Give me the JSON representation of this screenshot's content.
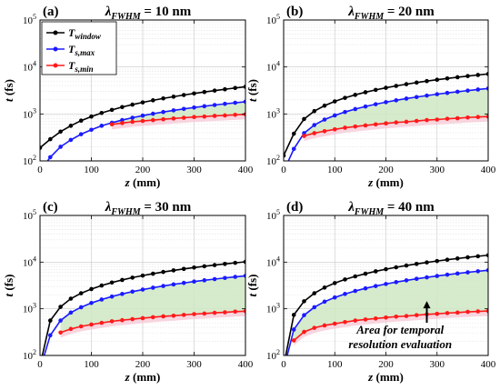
{
  "chart_data": [
    {
      "type": "line",
      "panel": "(a)",
      "title_var": "λ",
      "title_sub": "FWHM",
      "title_rest": " = 10 nm",
      "xlabel": "z (mm)",
      "ylabel": "t (fs)",
      "xlim": [
        0,
        400
      ],
      "ylim": [
        100,
        100000
      ],
      "yscale": "log",
      "xticks": [
        0,
        100,
        200,
        300,
        400
      ],
      "yticks": [
        {
          "v": 100,
          "label": "10",
          "exp": "2"
        },
        {
          "v": 1000,
          "label": "10",
          "exp": "3"
        },
        {
          "v": 10000,
          "label": "10",
          "exp": "4"
        },
        {
          "v": 100000,
          "label": "10",
          "exp": "5"
        }
      ],
      "grid": true,
      "legend": {
        "placement": "top-left",
        "entries": [
          {
            "base": "T",
            "sub": "window"
          },
          {
            "base": "T",
            "sub": "s,max"
          },
          {
            "base": "T",
            "sub": "s,min"
          }
        ]
      },
      "shaded_region": {
        "upper": "Ts,max",
        "lower": "Ts,min"
      },
      "series": [
        {
          "key": "window",
          "color": "#000000",
          "x": [
            0,
            20,
            40,
            60,
            80,
            100,
            120,
            140,
            160,
            180,
            200,
            220,
            240,
            260,
            280,
            300,
            320,
            340,
            360,
            380,
            400
          ],
          "y": [
            190,
            290,
            420,
            560,
            720,
            880,
            1050,
            1220,
            1400,
            1580,
            1760,
            1950,
            2140,
            2330,
            2530,
            2730,
            2930,
            3140,
            3350,
            3570,
            3790
          ]
        },
        {
          "key": "s,max",
          "color": "#1a1aff",
          "x": [
            0,
            20,
            40,
            60,
            80,
            100,
            120,
            140,
            160,
            180,
            200,
            220,
            240,
            260,
            280,
            300,
            320,
            340,
            360,
            380,
            400
          ],
          "y": [
            60,
            120,
            200,
            280,
            370,
            460,
            560,
            650,
            740,
            830,
            920,
            1010,
            1100,
            1190,
            1280,
            1370,
            1460,
            1550,
            1640,
            1730,
            1820
          ]
        },
        {
          "key": "s,min",
          "color": "#ff1a1a",
          "x": [
            140,
            160,
            180,
            200,
            220,
            240,
            260,
            280,
            300,
            320,
            340,
            360,
            380,
            400
          ],
          "y": [
            600,
            640,
            680,
            710,
            740,
            770,
            800,
            830,
            860,
            880,
            910,
            930,
            960,
            980
          ]
        }
      ]
    },
    {
      "type": "line",
      "panel": "(b)",
      "title_var": "λ",
      "title_sub": "FWHM",
      "title_rest": " = 20 nm",
      "xlabel": "z (mm)",
      "ylabel": "t (fs)",
      "xlim": [
        0,
        400
      ],
      "ylim": [
        100,
        100000
      ],
      "yscale": "log",
      "xticks": [
        0,
        100,
        200,
        300,
        400
      ],
      "yticks": [
        {
          "v": 100,
          "label": "10",
          "exp": "2"
        },
        {
          "v": 1000,
          "label": "10",
          "exp": "3"
        },
        {
          "v": 10000,
          "label": "10",
          "exp": "4"
        },
        {
          "v": 100000,
          "label": "10",
          "exp": "5"
        }
      ],
      "grid": true,
      "shaded_region": {
        "upper": "Ts,max",
        "lower": "Ts,min"
      },
      "series": [
        {
          "key": "window",
          "color": "#000000",
          "x": [
            0,
            20,
            40,
            60,
            80,
            100,
            120,
            140,
            160,
            180,
            200,
            220,
            240,
            260,
            280,
            300,
            320,
            340,
            360,
            380,
            400
          ],
          "y": [
            130,
            380,
            780,
            1150,
            1500,
            1850,
            2200,
            2550,
            2900,
            3250,
            3600,
            3950,
            4300,
            4650,
            5000,
            5350,
            5700,
            6050,
            6400,
            6750,
            7100
          ]
        },
        {
          "key": "s,max",
          "color": "#1a1aff",
          "x": [
            0,
            20,
            40,
            60,
            80,
            100,
            120,
            140,
            160,
            180,
            200,
            220,
            240,
            260,
            280,
            300,
            320,
            340,
            360,
            380,
            400
          ],
          "y": [
            60,
            180,
            390,
            580,
            760,
            930,
            1100,
            1270,
            1440,
            1610,
            1780,
            1950,
            2120,
            2290,
            2460,
            2630,
            2800,
            2970,
            3140,
            3310,
            3480
          ]
        },
        {
          "key": "s,min",
          "color": "#ff1a1a",
          "x": [
            40,
            60,
            80,
            100,
            120,
            140,
            160,
            180,
            200,
            220,
            240,
            260,
            280,
            300,
            320,
            340,
            360,
            380,
            400
          ],
          "y": [
            340,
            390,
            430,
            470,
            510,
            540,
            570,
            600,
            630,
            660,
            680,
            710,
            740,
            760,
            790,
            810,
            840,
            860,
            880
          ]
        }
      ]
    },
    {
      "type": "line",
      "panel": "(c)",
      "title_var": "λ",
      "title_sub": "FWHM",
      "title_rest": " = 30 nm",
      "xlabel": "z (mm)",
      "ylabel": "t (fs)",
      "xlim": [
        0,
        400
      ],
      "ylim": [
        100,
        100000
      ],
      "yscale": "log",
      "xticks": [
        0,
        100,
        200,
        300,
        400
      ],
      "yticks": [
        {
          "v": 100,
          "label": "10",
          "exp": "2"
        },
        {
          "v": 1000,
          "label": "10",
          "exp": "3"
        },
        {
          "v": 10000,
          "label": "10",
          "exp": "4"
        },
        {
          "v": 100000,
          "label": "10",
          "exp": "5"
        }
      ],
      "grid": true,
      "shaded_region": {
        "upper": "Ts,max",
        "lower": "Ts,min"
      },
      "series": [
        {
          "key": "window",
          "color": "#000000",
          "x": [
            0,
            20,
            40,
            60,
            80,
            100,
            120,
            140,
            160,
            180,
            200,
            220,
            240,
            260,
            280,
            300,
            320,
            340,
            360,
            380,
            400
          ],
          "y": [
            60,
            560,
            1100,
            1650,
            2150,
            2650,
            3150,
            3650,
            4150,
            4650,
            5150,
            5650,
            6150,
            6650,
            7150,
            7650,
            8150,
            8650,
            9150,
            9650,
            10150
          ]
        },
        {
          "key": "s,max",
          "color": "#1a1aff",
          "x": [
            0,
            20,
            40,
            60,
            80,
            100,
            120,
            140,
            160,
            180,
            200,
            220,
            240,
            260,
            280,
            300,
            320,
            340,
            360,
            380,
            400
          ],
          "y": [
            50,
            270,
            560,
            830,
            1080,
            1330,
            1580,
            1830,
            2080,
            2330,
            2580,
            2830,
            3080,
            3330,
            3580,
            3830,
            4080,
            4330,
            4580,
            4830,
            5080
          ]
        },
        {
          "key": "s,min",
          "color": "#ff1a1a",
          "x": [
            40,
            60,
            80,
            100,
            120,
            140,
            160,
            180,
            200,
            220,
            240,
            260,
            280,
            300,
            320,
            340,
            360,
            380,
            400
          ],
          "y": [
            310,
            370,
            420,
            460,
            500,
            540,
            570,
            600,
            630,
            660,
            690,
            710,
            740,
            770,
            790,
            820,
            840,
            870,
            890
          ]
        }
      ]
    },
    {
      "type": "line",
      "panel": "(d)",
      "title_var": "λ",
      "title_sub": "FWHM",
      "title_rest": " = 40 nm",
      "xlabel": "z (mm)",
      "ylabel": "t (fs)",
      "xlim": [
        0,
        400
      ],
      "ylim": [
        100,
        100000
      ],
      "yscale": "log",
      "xticks": [
        0,
        100,
        200,
        300,
        400
      ],
      "yticks": [
        {
          "v": 100,
          "label": "10",
          "exp": "2"
        },
        {
          "v": 1000,
          "label": "10",
          "exp": "3"
        },
        {
          "v": 10000,
          "label": "10",
          "exp": "4"
        },
        {
          "v": 100000,
          "label": "10",
          "exp": "5"
        }
      ],
      "grid": true,
      "shaded_region": {
        "upper": "Ts,max",
        "lower": "Ts,min"
      },
      "annotation": {
        "lines": [
          "Area for temporal",
          "resolution evaluation"
        ],
        "arrow_to": [
          280,
          1400
        ]
      },
      "series": [
        {
          "key": "window",
          "color": "#000000",
          "x": [
            0,
            20,
            40,
            60,
            80,
            100,
            120,
            140,
            160,
            180,
            200,
            220,
            240,
            260,
            280,
            300,
            320,
            340,
            360,
            380,
            400
          ],
          "y": [
            60,
            740,
            1450,
            2150,
            2850,
            3550,
            4250,
            4950,
            5650,
            6350,
            7050,
            7750,
            8450,
            9150,
            9850,
            10550,
            11250,
            11950,
            12650,
            13350,
            14050
          ]
        },
        {
          "key": "s,max",
          "color": "#1a1aff",
          "x": [
            0,
            20,
            40,
            60,
            80,
            100,
            120,
            140,
            160,
            180,
            200,
            220,
            240,
            260,
            280,
            300,
            320,
            340,
            360,
            380,
            400
          ],
          "y": [
            50,
            360,
            730,
            1080,
            1420,
            1750,
            2080,
            2410,
            2740,
            3070,
            3400,
            3730,
            4060,
            4390,
            4720,
            5050,
            5380,
            5710,
            6040,
            6370,
            6700
          ]
        },
        {
          "key": "s,min",
          "color": "#ff1a1a",
          "x": [
            20,
            40,
            60,
            80,
            100,
            120,
            140,
            160,
            180,
            200,
            220,
            240,
            260,
            280,
            300,
            320,
            340,
            360,
            380,
            400
          ],
          "y": [
            210,
            320,
            390,
            440,
            480,
            520,
            560,
            590,
            620,
            650,
            680,
            700,
            730,
            760,
            780,
            810,
            830,
            860,
            880,
            900
          ]
        }
      ]
    }
  ]
}
